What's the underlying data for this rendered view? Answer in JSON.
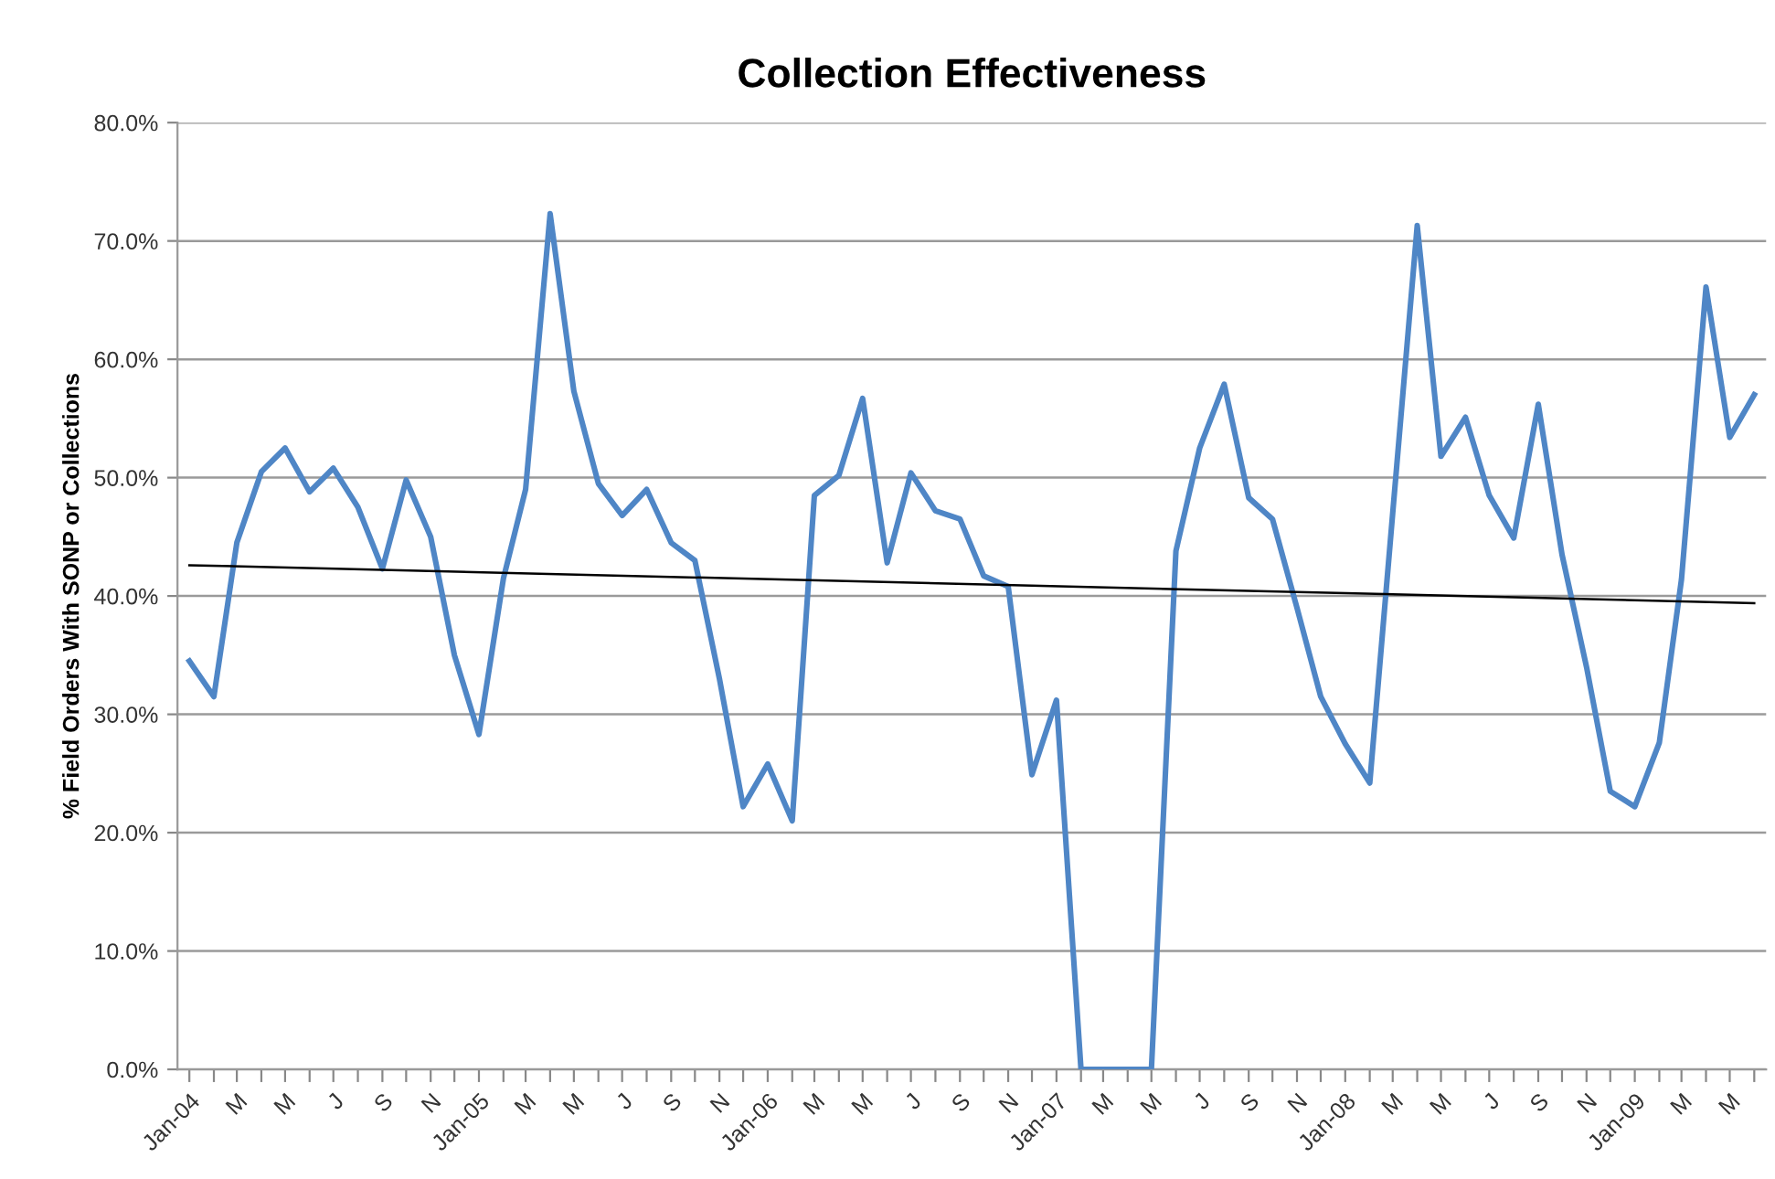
{
  "chart_data": {
    "type": "line",
    "title": "Collection Effectiveness",
    "ylabel": "% Field Orders With SONP or Collections",
    "x": [
      "2004-01",
      "2004-02",
      "2004-03",
      "2004-04",
      "2004-05",
      "2004-06",
      "2004-07",
      "2004-08",
      "2004-09",
      "2004-10",
      "2004-11",
      "2004-12",
      "2005-01",
      "2005-02",
      "2005-03",
      "2005-04",
      "2005-05",
      "2005-06",
      "2005-07",
      "2005-08",
      "2005-09",
      "2005-10",
      "2005-11",
      "2005-12",
      "2006-01",
      "2006-02",
      "2006-03",
      "2006-04",
      "2006-05",
      "2006-06",
      "2006-07",
      "2006-08",
      "2006-09",
      "2006-10",
      "2006-11",
      "2006-12",
      "2007-01",
      "2007-02",
      "2007-03",
      "2007-04",
      "2007-05",
      "2007-06",
      "2007-07",
      "2007-08",
      "2007-09",
      "2007-10",
      "2007-11",
      "2007-12",
      "2008-01",
      "2008-02",
      "2008-03",
      "2008-04",
      "2008-05",
      "2008-06",
      "2008-07",
      "2008-08",
      "2008-09",
      "2008-10",
      "2008-11",
      "2008-12",
      "2009-01",
      "2009-02",
      "2009-03",
      "2009-04",
      "2009-05",
      "2009-06"
    ],
    "series": [
      {
        "color": "#4f86c6",
        "values": [
          34.5,
          31.5,
          44.5,
          50.5,
          52.5,
          48.8,
          50.8,
          47.5,
          42.3,
          49.8,
          45,
          35,
          28.3,
          41.5,
          49,
          72.3,
          57.3,
          49.5,
          46.8,
          49,
          44.5,
          43,
          33,
          22.2,
          25.8,
          21,
          48.5,
          50.2,
          56.7,
          42.8,
          50.4,
          47.2,
          46.5,
          41.7,
          40.8,
          24.9,
          31.2,
          0,
          0,
          0,
          0,
          43.8,
          52.5,
          57.9,
          48.3,
          46.5,
          39,
          31.5,
          27.5,
          24.2,
          47,
          71.3,
          51.8,
          55.1,
          48.5,
          44.9,
          56.2,
          43.5,
          34,
          23.5,
          22.2,
          27.6,
          41.4,
          66.1,
          53.4,
          57
        ]
      },
      {
        "type": "line",
        "color": "#000000",
        "x": [
          "2004-01",
          "2009-06"
        ],
        "values": [
          42.6,
          39.4
        ]
      }
    ],
    "xlim": [
      "2003-12-17",
      "2009-06-16"
    ],
    "xticks": [
      {
        "value": "2004-01",
        "label": "Jan-04"
      },
      {
        "value": "2004-02",
        "label": null
      },
      {
        "value": "2004-03",
        "label": "M"
      },
      {
        "value": "2004-04",
        "label": null
      },
      {
        "value": "2004-05",
        "label": "M"
      },
      {
        "value": "2004-06",
        "label": null
      },
      {
        "value": "2004-07",
        "label": "J"
      },
      {
        "value": "2004-08",
        "label": null
      },
      {
        "value": "2004-09",
        "label": "S"
      },
      {
        "value": "2004-10",
        "label": null
      },
      {
        "value": "2004-11",
        "label": "N"
      },
      {
        "value": "2004-12",
        "label": null
      },
      {
        "value": "2005-01",
        "label": "Jan-05"
      },
      {
        "value": "2005-02",
        "label": null
      },
      {
        "value": "2005-03",
        "label": "M"
      },
      {
        "value": "2005-04",
        "label": null
      },
      {
        "value": "2005-05",
        "label": "M"
      },
      {
        "value": "2005-06",
        "label": null
      },
      {
        "value": "2005-07",
        "label": "J"
      },
      {
        "value": "2005-08",
        "label": null
      },
      {
        "value": "2005-09",
        "label": "S"
      },
      {
        "value": "2005-10",
        "label": null
      },
      {
        "value": "2005-11",
        "label": "N"
      },
      {
        "value": "2005-12",
        "label": null
      },
      {
        "value": "2006-01",
        "label": "Jan-06"
      },
      {
        "value": "2006-02",
        "label": null
      },
      {
        "value": "2006-03",
        "label": "M"
      },
      {
        "value": "2006-04",
        "label": null
      },
      {
        "value": "2006-05",
        "label": "M"
      },
      {
        "value": "2006-06",
        "label": null
      },
      {
        "value": "2006-07",
        "label": "J"
      },
      {
        "value": "2006-08",
        "label": null
      },
      {
        "value": "2006-09",
        "label": "S"
      },
      {
        "value": "2006-10",
        "label": null
      },
      {
        "value": "2006-11",
        "label": "N"
      },
      {
        "value": "2006-12",
        "label": null
      },
      {
        "value": "2007-01",
        "label": "Jan-07"
      },
      {
        "value": "2007-02",
        "label": null
      },
      {
        "value": "2007-03",
        "label": "M"
      },
      {
        "value": "2007-04",
        "label": null
      },
      {
        "value": "2007-05",
        "label": "M"
      },
      {
        "value": "2007-06",
        "label": null
      },
      {
        "value": "2007-07",
        "label": "J"
      },
      {
        "value": "2007-08",
        "label": null
      },
      {
        "value": "2007-09",
        "label": "S"
      },
      {
        "value": "2007-10",
        "label": null
      },
      {
        "value": "2007-11",
        "label": "N"
      },
      {
        "value": "2007-12",
        "label": null
      },
      {
        "value": "2008-01",
        "label": "Jan-08"
      },
      {
        "value": "2008-02",
        "label": null
      },
      {
        "value": "2008-03",
        "label": "M"
      },
      {
        "value": "2008-04",
        "label": null
      },
      {
        "value": "2008-05",
        "label": "M"
      },
      {
        "value": "2008-06",
        "label": null
      },
      {
        "value": "2008-07",
        "label": "J"
      },
      {
        "value": "2008-08",
        "label": null
      },
      {
        "value": "2008-09",
        "label": "S"
      },
      {
        "value": "2008-10",
        "label": null
      },
      {
        "value": "2008-11",
        "label": "N"
      },
      {
        "value": "2008-12",
        "label": null
      },
      {
        "value": "2009-01",
        "label": "Jan-09"
      },
      {
        "value": "2009-02",
        "label": null
      },
      {
        "value": "2009-03",
        "label": "M"
      },
      {
        "value": "2009-04",
        "label": null
      },
      {
        "value": "2009-05",
        "label": "M"
      },
      {
        "value": "2009-06",
        "label": null
      }
    ],
    "ylim": [
      0,
      80
    ],
    "yticks": [
      {
        "value": 0,
        "label": "0.0%"
      },
      {
        "value": 10,
        "label": "10.0%"
      },
      {
        "value": 20,
        "label": "20.0%"
      },
      {
        "value": 30,
        "label": "30.0%"
      },
      {
        "value": 40,
        "label": "40.0%"
      },
      {
        "value": 50,
        "label": "50.0%"
      },
      {
        "value": 60,
        "label": "60.0%"
      },
      {
        "value": 70,
        "label": "70.0%"
      },
      {
        "value": 80,
        "label": "80.0%"
      }
    ],
    "grid": "y",
    "marker": "none",
    "line_style": "solid"
  }
}
